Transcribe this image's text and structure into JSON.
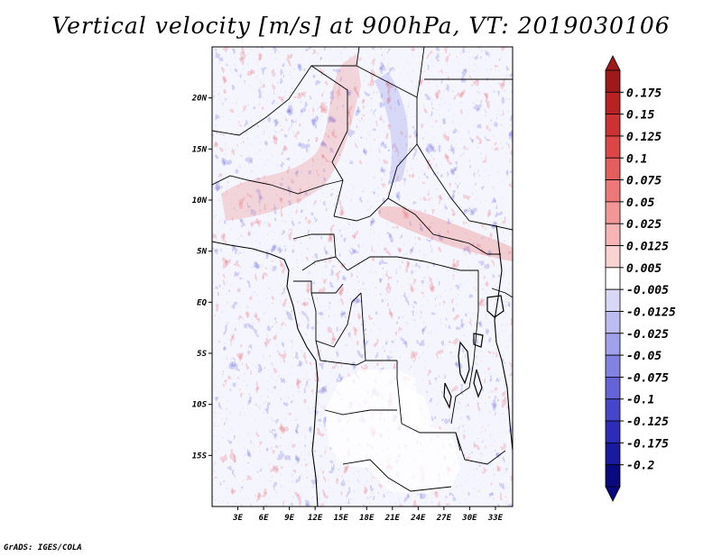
{
  "title": "Vertical velocity [m/s] at 900hPa, VT: 2019030106",
  "footer": "GrADS: IGES/COLA",
  "chart_data": {
    "type": "heatmap",
    "title": "Vertical velocity [m/s] at 900hPa, VT: 2019030106",
    "variable": "Vertical velocity",
    "units": "m/s",
    "level": "900hPa",
    "valid_time": "2019030106",
    "x_ticks": [
      "3E",
      "6E",
      "9E",
      "12E",
      "15E",
      "18E",
      "21E",
      "24E",
      "27E",
      "30E",
      "33E"
    ],
    "y_ticks": [
      "20N",
      "15N",
      "10N",
      "5N",
      "EQ",
      "5S",
      "10S",
      "15S"
    ],
    "x_tick_values": [
      3,
      6,
      9,
      12,
      15,
      18,
      21,
      24,
      27,
      30,
      33
    ],
    "y_tick_values": [
      20,
      15,
      10,
      5,
      0,
      -5,
      -10,
      -15
    ],
    "xlim": [
      0,
      35
    ],
    "ylim": [
      -20,
      25
    ],
    "colorbar": {
      "labels": [
        "0.175",
        "0.15",
        "0.125",
        "0.1",
        "0.075",
        "0.05",
        "0.025",
        "0.0125",
        "0.005",
        "-0.005",
        "-0.0125",
        "-0.025",
        "-0.05",
        "-0.075",
        "-0.1",
        "-0.125",
        "-0.175",
        "-0.2"
      ],
      "colors": [
        "#9e1a1a",
        "#b82222",
        "#cc3232",
        "#dc4646",
        "#e45e5e",
        "#ec7878",
        "#f29696",
        "#f6b4b4",
        "#fad2d2",
        "#ffffff",
        "#d8d8f6",
        "#bcbcf2",
        "#a0a0ec",
        "#8282e2",
        "#6464d8",
        "#4646ca",
        "#2c2cb8",
        "#1a1aa0",
        "#0a0a80"
      ]
    },
    "grid": false
  }
}
